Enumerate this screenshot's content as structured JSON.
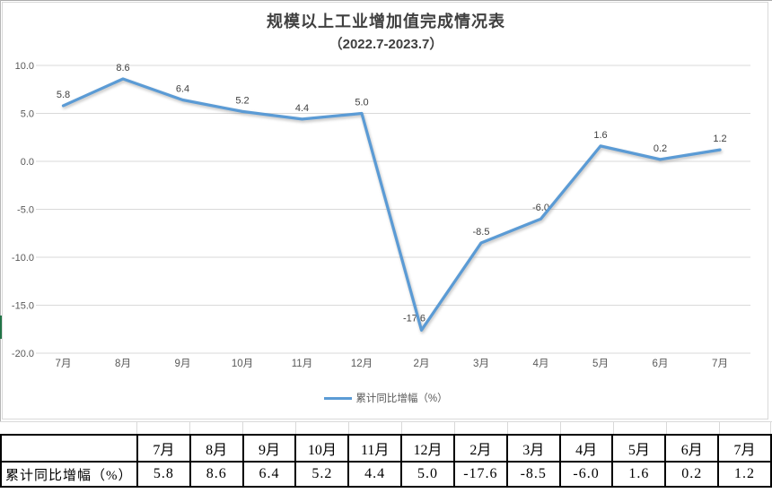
{
  "chart_data": {
    "type": "line",
    "title": "规模以上工业增加值完成情况表",
    "subtitle": "（2022.7-2023.7）",
    "categories": [
      "7月",
      "8月",
      "9月",
      "10月",
      "11月",
      "12月",
      "2月",
      "3月",
      "4月",
      "5月",
      "6月",
      "7月"
    ],
    "series": [
      {
        "name": "累计同比增幅（%）",
        "values": [
          5.8,
          8.6,
          6.4,
          5.2,
          4.4,
          5.0,
          -17.6,
          -8.5,
          -6.0,
          1.6,
          0.2,
          1.2
        ]
      }
    ],
    "data_labels": [
      "5.8",
      "8.6",
      "6.4",
      "5.2",
      "4.4",
      "5.0",
      "-17.6",
      "-8.5",
      "-6.0",
      "1.6",
      "0.2",
      "1.2"
    ],
    "ylim": [
      -20,
      10
    ],
    "yticks": [
      10,
      5,
      0,
      -5,
      -10,
      -15,
      -20
    ],
    "ytick_labels": [
      "10.0",
      "5.0",
      "0.0",
      "-5.0",
      "-10.0",
      "-15.0",
      "-20.0"
    ],
    "grid": true,
    "legend_position": "bottom",
    "line_color": "#5B9BD5"
  },
  "table": {
    "row_header": "累计同比增幅（%）",
    "columns": [
      "7月",
      "8月",
      "9月",
      "10月",
      "11月",
      "12月",
      "2月",
      "3月",
      "4月",
      "5月",
      "6月",
      "7月"
    ],
    "values": [
      "5.8",
      "8.6",
      "6.4",
      "5.2",
      "4.4",
      "5.0",
      "-17.6",
      "-8.5",
      "-6.0",
      "1.6",
      "0.2",
      "1.2"
    ]
  },
  "colors": {
    "line": "#5B9BD5",
    "gridline": "#d9d9d9",
    "axis_text": "#595959",
    "data_label": "#404040",
    "title": "#3f3f3f",
    "table_border": "#000000",
    "edge_green": "#217346"
  }
}
